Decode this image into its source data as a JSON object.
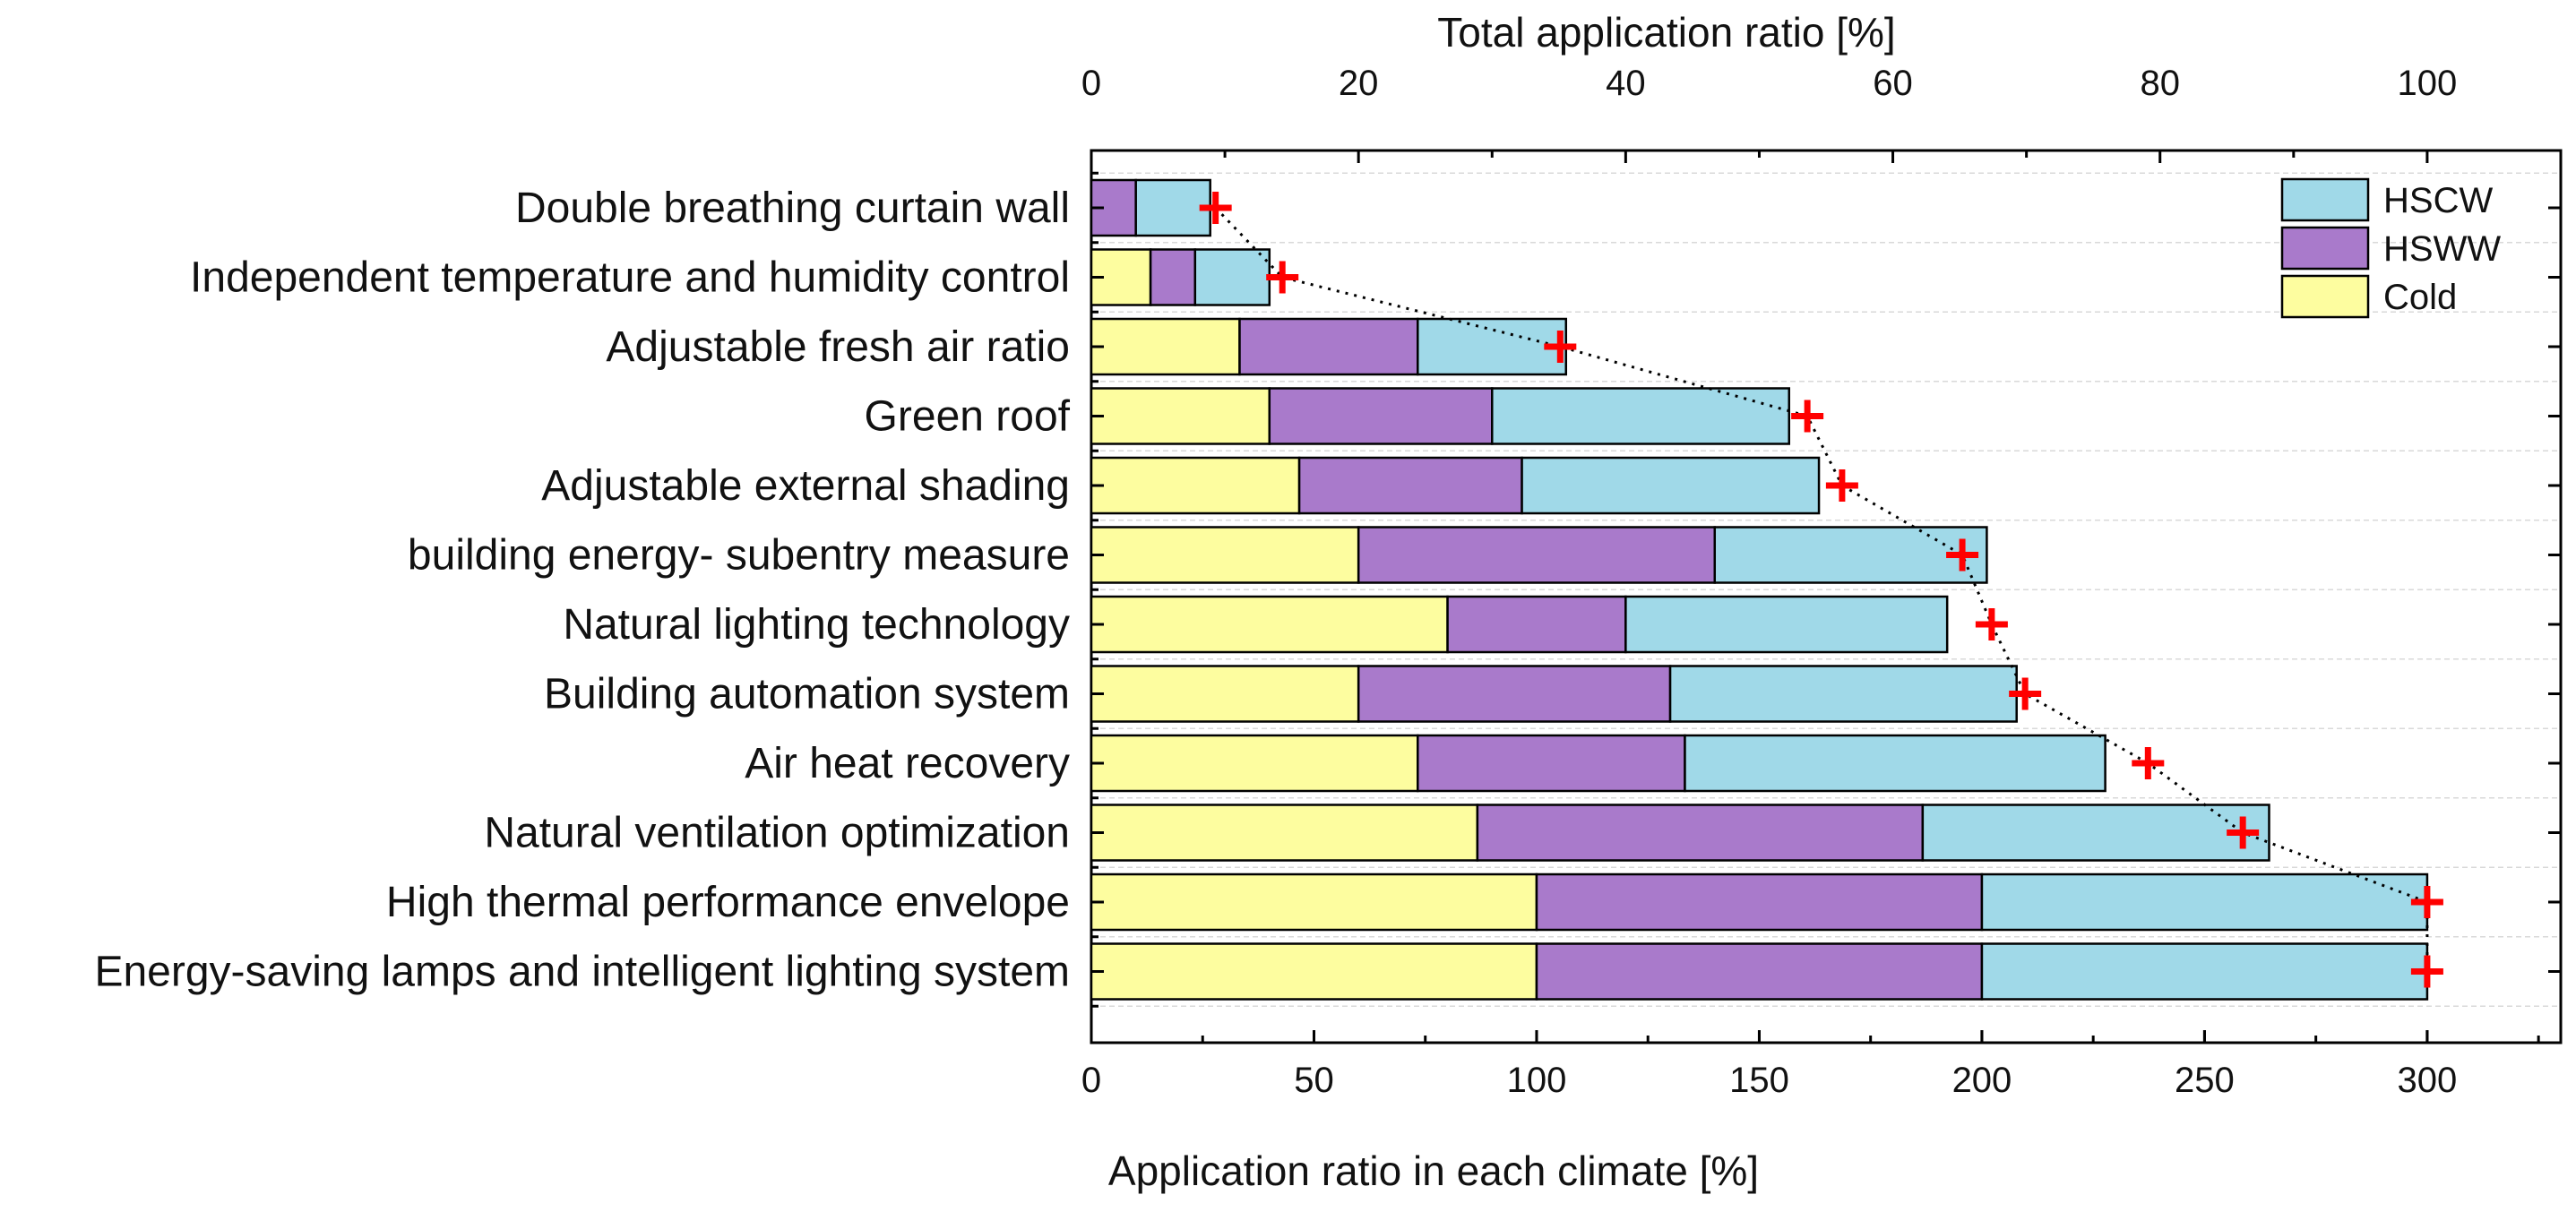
{
  "chart_data": {
    "type": "bar",
    "orientation": "horizontal",
    "stacked": true,
    "title": "",
    "xlabel": "Application ratio in each climate [%]",
    "x2label": "Total application ratio [%]",
    "ylabel": "",
    "xlim": [
      0,
      330
    ],
    "xticks": [
      0,
      50,
      100,
      150,
      200,
      250,
      300
    ],
    "x2lim": [
      0,
      110
    ],
    "x2ticks": [
      0,
      20,
      40,
      60,
      80,
      100
    ],
    "legend_position": "top-right",
    "categories": [
      "Double breathing curtain wall",
      "Independent temperature and humidity control",
      "Adjustable fresh air ratio",
      "Green roof",
      "Adjustable external shading",
      "building energy- subentry measure",
      "Natural lighting technology",
      "Building automation system",
      "Air heat recovery",
      "Natural ventilation optimization",
      "High thermal performance envelope",
      "Energy-saving lamps and intelligent lighting system"
    ],
    "series": [
      {
        "name": "Cold",
        "color": "#fdfd9f",
        "values": [
          0,
          13.3,
          33.3,
          40,
          46.7,
          60,
          80,
          60,
          73.3,
          86.7,
          100,
          100
        ]
      },
      {
        "name": "HSWW",
        "color": "#a97acb",
        "values": [
          10,
          10,
          40,
          50,
          50,
          80,
          40,
          70,
          60,
          100,
          100,
          100
        ]
      },
      {
        "name": "HSCW",
        "color": "#a0d9e8",
        "values": [
          16.7,
          16.7,
          33.3,
          66.7,
          66.7,
          61.1,
          72.2,
          77.8,
          94.4,
          77.8,
          100,
          100
        ]
      }
    ],
    "total_application_ratio": {
      "name": "Total application ratio",
      "marker": "cross",
      "color": "#ff0000",
      "line": "dotted",
      "values": [
        9.3,
        14.3,
        35.1,
        53.6,
        56.2,
        65.2,
        67.4,
        69.9,
        79.1,
        86.2,
        100,
        100
      ]
    }
  }
}
